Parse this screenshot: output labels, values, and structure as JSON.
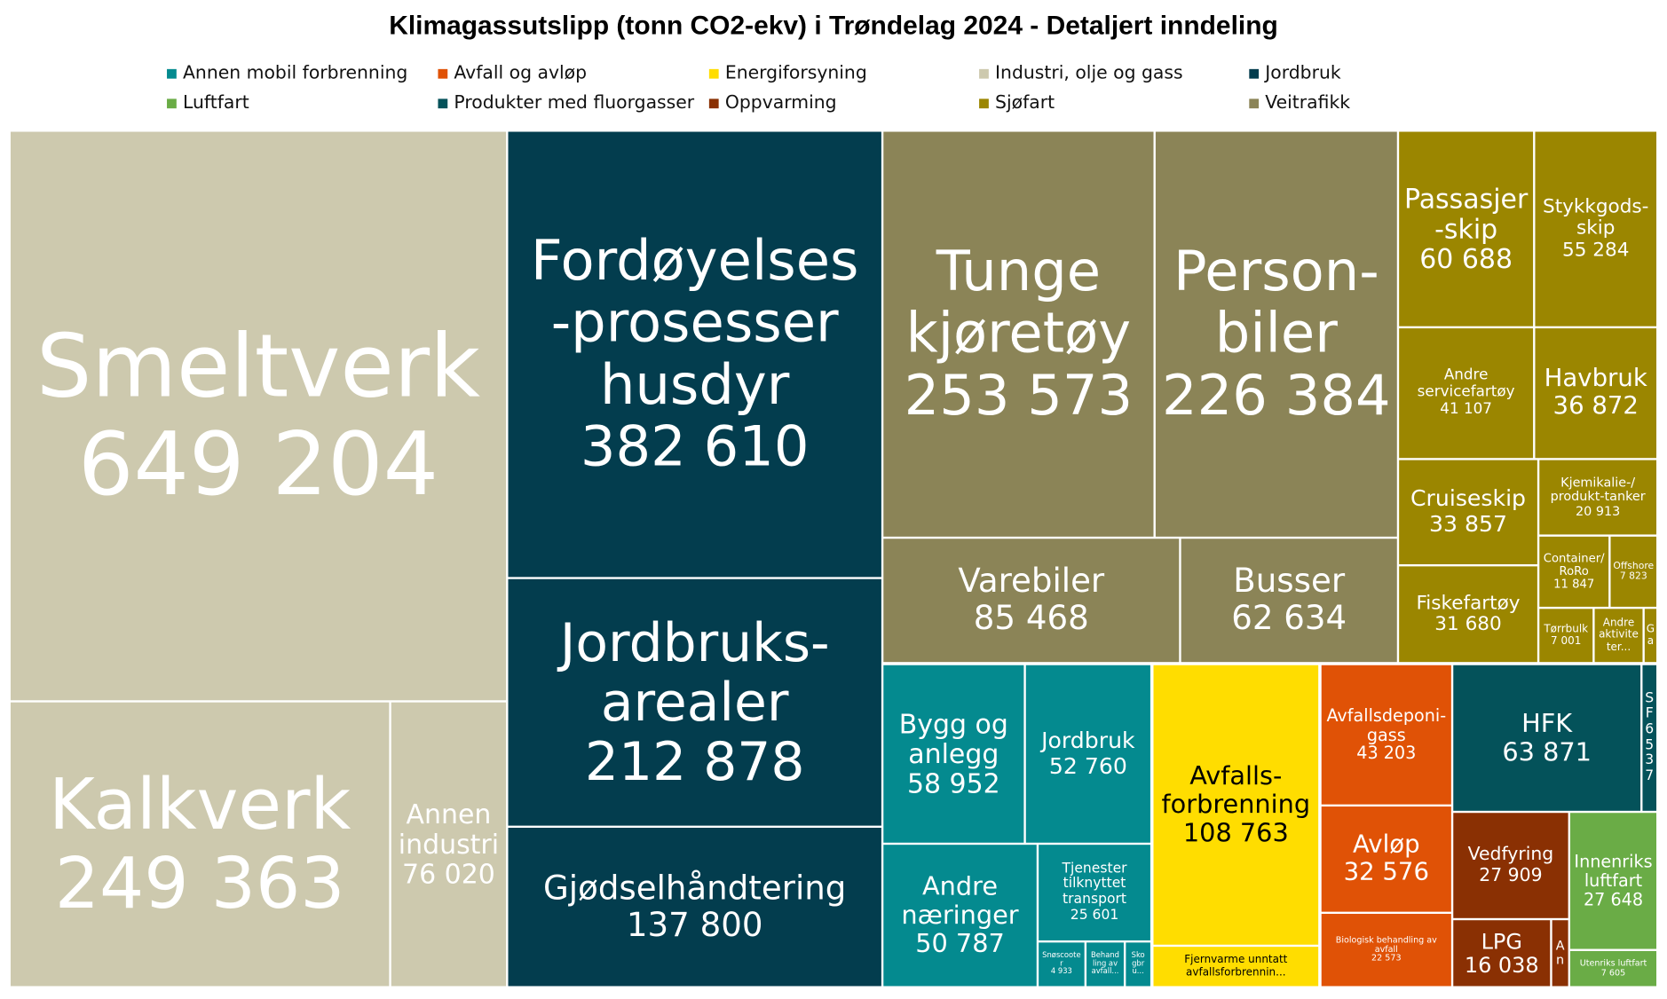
{
  "chart_data": {
    "type": "treemap",
    "title": "Klimagassutslipp (tonn CO2-ekv) i Trøndelag 2024 - Detaljert inndeling",
    "legend_position": "top",
    "legend": [
      {
        "name": "Annen mobil forbrenning",
        "color": "#048a8f"
      },
      {
        "name": "Avfall og avløp",
        "color": "#e05206"
      },
      {
        "name": "Energiforsyning",
        "color": "#ffdd00"
      },
      {
        "name": "Industri, olje og gass",
        "color": "#cdc9ae"
      },
      {
        "name": "Jordbruk",
        "color": "#033d4e"
      },
      {
        "name": "Luftfart",
        "color": "#6aac46"
      },
      {
        "name": "Produkter med fluorgasser",
        "color": "#04525a"
      },
      {
        "name": "Oppvarming",
        "color": "#8a3003"
      },
      {
        "name": "Sjøfart",
        "color": "#9b8600"
      },
      {
        "name": "Veitrafikk",
        "color": "#8b8457"
      }
    ],
    "groups": [
      {
        "name": "Industri, olje og gass",
        "items": [
          {
            "label": "Smeltverk",
            "value": 649204
          },
          {
            "label": "Kalkverk",
            "value": 249363
          },
          {
            "label": "Annen\nindustri",
            "value": 76020
          }
        ]
      },
      {
        "name": "Jordbruk",
        "items": [
          {
            "label": "Fordøyelses\n-prosesser\nhusdyr",
            "value": 382610
          },
          {
            "label": "Jordbruks-\narealer",
            "value": 212878
          },
          {
            "label": "Gjødselhåndtering",
            "value": 137800
          }
        ]
      },
      {
        "name": "Veitrafikk",
        "items": [
          {
            "label": "Tunge\nkjøretøy",
            "value": 253573
          },
          {
            "label": "Person-\nbiler",
            "value": 226384
          },
          {
            "label": "Varebiler",
            "value": 85468
          },
          {
            "label": "Busser",
            "value": 62634
          }
        ]
      },
      {
        "name": "Sjøfart",
        "items": [
          {
            "label": "Passasjer\n-skip",
            "value": 60688
          },
          {
            "label": "Stykkgods-\nskip",
            "value": 55284
          },
          {
            "label": "Andre\nservicefartøy",
            "value": 41107
          },
          {
            "label": "Havbruk",
            "value": 36872
          },
          {
            "label": "Cruiseskip",
            "value": 33857
          },
          {
            "label": "Kjemikalie-/\nprodukt-tanker",
            "value": 20913
          },
          {
            "label": "Fiskefartøy",
            "value": 31680
          },
          {
            "label": "Container/\nRoRo",
            "value": 11847
          },
          {
            "label": "Offshore",
            "value": 7823
          },
          {
            "label": "Tørrbulk",
            "value": 7001
          },
          {
            "label": "Andre\naktivite\nter...",
            "value": null
          },
          {
            "label": "G\na",
            "value": null
          }
        ]
      },
      {
        "name": "Annen mobil forbrenning",
        "items": [
          {
            "label": "Bygg og\nanlegg",
            "value": 58952
          },
          {
            "label": "Jordbruk",
            "value": 52760
          },
          {
            "label": "Andre\nnæringer",
            "value": 50787
          },
          {
            "label": "Tjenester\ntilknyttet\ntransport",
            "value": 25601
          },
          {
            "label": "Snøscoote\nr",
            "value": 4933
          },
          {
            "label": "Behand\nling av\navfall...",
            "value": null
          },
          {
            "label": "Sko\ngbr\nu...",
            "value": null
          }
        ]
      },
      {
        "name": "Energiforsyning",
        "items": [
          {
            "label": "Avfalls-\nforbrenning",
            "value": 108763
          },
          {
            "label": "Fjernvarme unntatt\navfallsforbrennin...",
            "value": null
          }
        ]
      },
      {
        "name": "Avfall og avløp",
        "items": [
          {
            "label": "Avfallsdeponi-\ngass",
            "value": 43203
          },
          {
            "label": "Avløp",
            "value": 32576
          },
          {
            "label": "Biologisk behandling av avfall",
            "value": 22573
          }
        ]
      },
      {
        "name": "Produkter med fluorgasser",
        "items": [
          {
            "label": "HFK",
            "value": 63871
          },
          {
            "label": "SF6",
            "value": 537
          }
        ]
      },
      {
        "name": "Oppvarming",
        "items": [
          {
            "label": "Vedfyring",
            "value": 27909
          },
          {
            "label": "LPG",
            "value": 16038
          },
          {
            "label": "A\nn",
            "value": null
          }
        ]
      },
      {
        "name": "Luftfart",
        "items": [
          {
            "label": "Innenriks\nluftfart",
            "value": 27648
          },
          {
            "label": "Utenriks luftfart",
            "value": 7605
          }
        ]
      }
    ]
  }
}
